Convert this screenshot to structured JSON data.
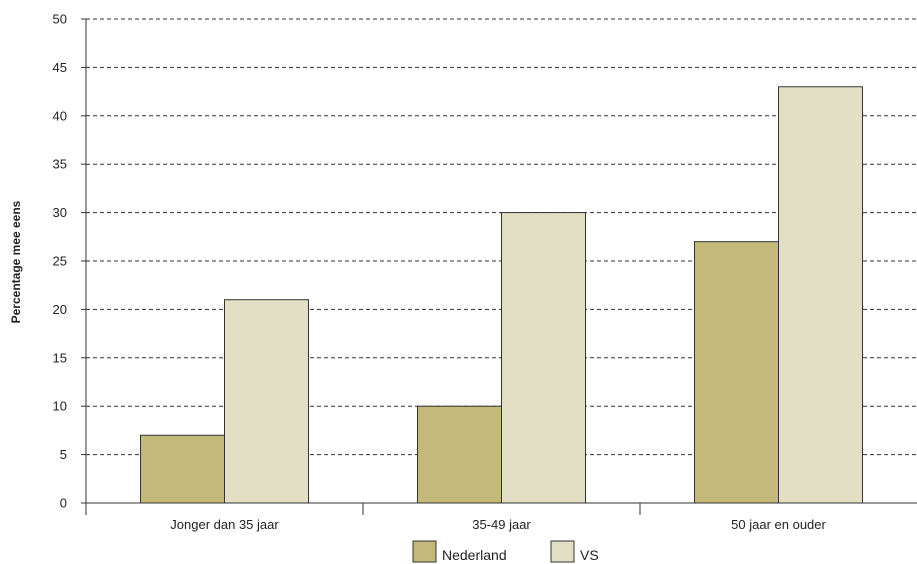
{
  "chart_data": {
    "type": "bar",
    "categories": [
      "Jonger dan 35 jaar",
      "35-49 jaar",
      "50 jaar en ouder"
    ],
    "series": [
      {
        "name": "Nederland",
        "values": [
          7,
          10,
          27
        ],
        "color": "#c2b97b"
      },
      {
        "name": "VS",
        "values": [
          21,
          30,
          43
        ],
        "color": "#e3dfc4"
      }
    ],
    "title": "",
    "xlabel": "",
    "ylabel": "Percentage mee eens",
    "ylim": [
      0,
      50
    ],
    "yticks": [
      0,
      5,
      10,
      15,
      20,
      25,
      30,
      35,
      40,
      45,
      50
    ],
    "grid": "horizontal dashed",
    "legend_position": "bottom-center"
  }
}
